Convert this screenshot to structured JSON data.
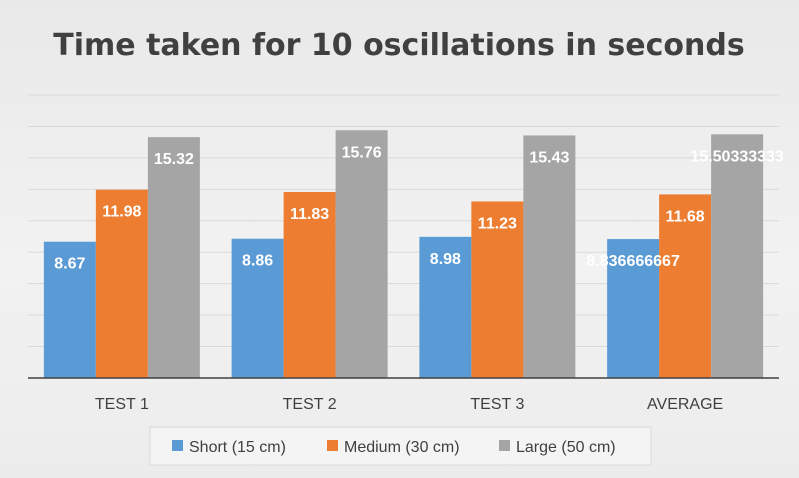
{
  "chart_data": {
    "type": "bar",
    "title": "Time taken for 10 oscillations in seconds",
    "categories": [
      "TEST 1",
      "TEST 2",
      "TEST 3",
      "AVERAGE"
    ],
    "series": [
      {
        "name": "Short (15 cm)",
        "color": "#5b9bd5",
        "values": [
          8.67,
          8.86,
          8.98,
          8.836666667
        ],
        "labels": [
          "8.67",
          "8.86",
          "8.98",
          "8.836666667"
        ]
      },
      {
        "name": "Medium (30 cm)",
        "color": "#ed7d31",
        "values": [
          11.98,
          11.83,
          11.23,
          11.68
        ],
        "labels": [
          "11.98",
          "11.83",
          "11.23",
          "11.68"
        ]
      },
      {
        "name": "Large (50 cm)",
        "color": "#a5a5a5",
        "values": [
          15.32,
          15.76,
          15.43,
          15.50333333
        ],
        "labels": [
          "15.32",
          "15.76",
          "15.43",
          "15.50333333"
        ]
      }
    ],
    "ylim": [
      0,
      18
    ],
    "grid": true,
    "legend": "bottom",
    "xlabel": "",
    "ylabel": ""
  }
}
